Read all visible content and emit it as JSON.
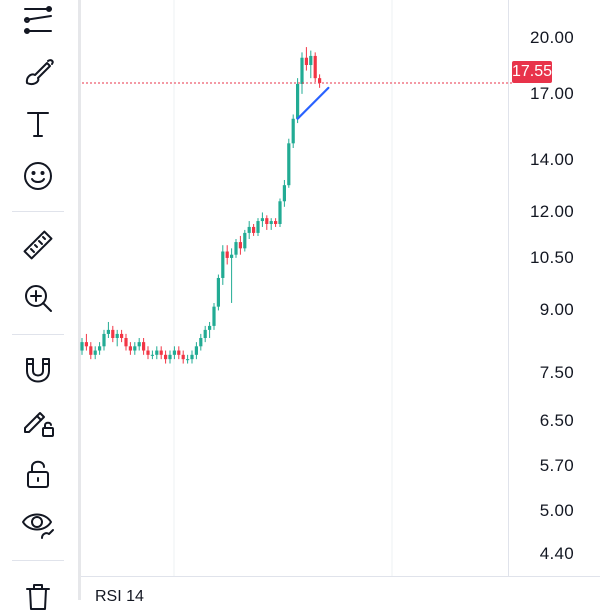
{
  "toolbar": {
    "tools": [
      {
        "name": "trend-line-tool-icon"
      },
      {
        "name": "brush-tool-icon"
      },
      {
        "name": "text-tool-icon"
      },
      {
        "name": "emoji-tool-icon"
      },
      {
        "name": "ruler-tool-icon"
      },
      {
        "name": "zoom-in-tool-icon"
      },
      {
        "name": "magnet-tool-icon"
      },
      {
        "name": "lock-drawing-icon"
      },
      {
        "name": "unlock-icon"
      },
      {
        "name": "eye-visibility-icon"
      },
      {
        "name": "trash-icon"
      }
    ]
  },
  "price_axis": {
    "ticks": [
      "20.00",
      "17.00",
      "14.00",
      "12.00",
      "10.50",
      "9.00",
      "7.50",
      "6.50",
      "5.70",
      "5.00",
      "4.40"
    ],
    "current_price": "17.55",
    "current_price_color": "#e8334a",
    "scale": "log"
  },
  "indicator": {
    "label": "RSI 14"
  },
  "colors": {
    "up": "#22ab94",
    "down": "#f23645",
    "trend_line": "#2962ff"
  },
  "chart_data": {
    "type": "candlestick",
    "scale": "log",
    "ylim": [
      4.2,
      22
    ],
    "candles": [
      [
        8.0,
        8.3,
        7.9,
        8.2
      ],
      [
        8.2,
        8.4,
        8.0,
        8.1
      ],
      [
        8.1,
        8.2,
        7.8,
        7.9
      ],
      [
        7.9,
        8.1,
        7.8,
        8.0
      ],
      [
        8.0,
        8.2,
        7.9,
        8.1
      ],
      [
        8.1,
        8.5,
        8.0,
        8.4
      ],
      [
        8.4,
        8.7,
        8.3,
        8.5
      ],
      [
        8.5,
        8.6,
        8.2,
        8.3
      ],
      [
        8.3,
        8.5,
        8.1,
        8.4
      ],
      [
        8.4,
        8.5,
        8.2,
        8.3
      ],
      [
        8.3,
        8.4,
        8.0,
        8.1
      ],
      [
        8.1,
        8.2,
        7.9,
        8.0
      ],
      [
        8.0,
        8.2,
        7.9,
        8.1
      ],
      [
        8.1,
        8.3,
        8.0,
        8.2
      ],
      [
        8.2,
        8.3,
        7.9,
        8.0
      ],
      [
        8.0,
        8.1,
        7.8,
        7.9
      ],
      [
        7.9,
        8.0,
        7.8,
        7.9
      ],
      [
        7.9,
        8.1,
        7.8,
        8.0
      ],
      [
        8.0,
        8.1,
        7.8,
        7.9
      ],
      [
        7.9,
        8.0,
        7.7,
        7.8
      ],
      [
        7.8,
        8.0,
        7.7,
        7.9
      ],
      [
        7.9,
        8.1,
        7.8,
        8.0
      ],
      [
        8.0,
        8.1,
        7.8,
        7.9
      ],
      [
        7.9,
        8.0,
        7.7,
        7.8
      ],
      [
        7.8,
        7.9,
        7.7,
        7.8
      ],
      [
        7.8,
        8.0,
        7.7,
        7.9
      ],
      [
        7.9,
        8.2,
        7.8,
        8.1
      ],
      [
        8.1,
        8.4,
        8.0,
        8.3
      ],
      [
        8.3,
        8.6,
        8.2,
        8.5
      ],
      [
        8.5,
        8.7,
        8.3,
        8.6
      ],
      [
        8.6,
        9.2,
        8.5,
        9.1
      ],
      [
        9.1,
        10.0,
        9.0,
        9.9
      ],
      [
        9.9,
        10.9,
        9.7,
        10.7
      ],
      [
        10.7,
        10.9,
        10.3,
        10.5
      ],
      [
        10.5,
        10.8,
        9.2,
        10.6
      ],
      [
        10.6,
        11.1,
        10.5,
        11.0
      ],
      [
        11.0,
        11.2,
        10.6,
        10.8
      ],
      [
        10.8,
        11.4,
        10.7,
        11.3
      ],
      [
        11.3,
        11.7,
        11.1,
        11.5
      ],
      [
        11.5,
        11.6,
        11.2,
        11.3
      ],
      [
        11.3,
        11.8,
        11.2,
        11.7
      ],
      [
        11.7,
        12.0,
        11.5,
        11.8
      ],
      [
        11.8,
        11.9,
        11.4,
        11.6
      ],
      [
        11.6,
        11.8,
        11.4,
        11.7
      ],
      [
        11.7,
        11.8,
        11.5,
        11.6
      ],
      [
        11.6,
        12.5,
        11.5,
        12.4
      ],
      [
        12.4,
        13.2,
        12.2,
        13.0
      ],
      [
        13.0,
        14.9,
        12.9,
        14.7
      ],
      [
        14.7,
        16.0,
        14.5,
        15.8
      ],
      [
        15.8,
        17.8,
        15.6,
        17.5
      ],
      [
        17.5,
        19.2,
        17.0,
        18.9
      ],
      [
        18.9,
        19.5,
        18.2,
        18.5
      ],
      [
        18.5,
        19.3,
        17.8,
        19.0
      ],
      [
        19.0,
        19.2,
        17.6,
        17.8
      ],
      [
        17.8,
        18.0,
        17.3,
        17.55
      ]
    ],
    "trend_line": {
      "from": [
        49,
        15.8
      ],
      "to": [
        56,
        17.3
      ]
    }
  }
}
